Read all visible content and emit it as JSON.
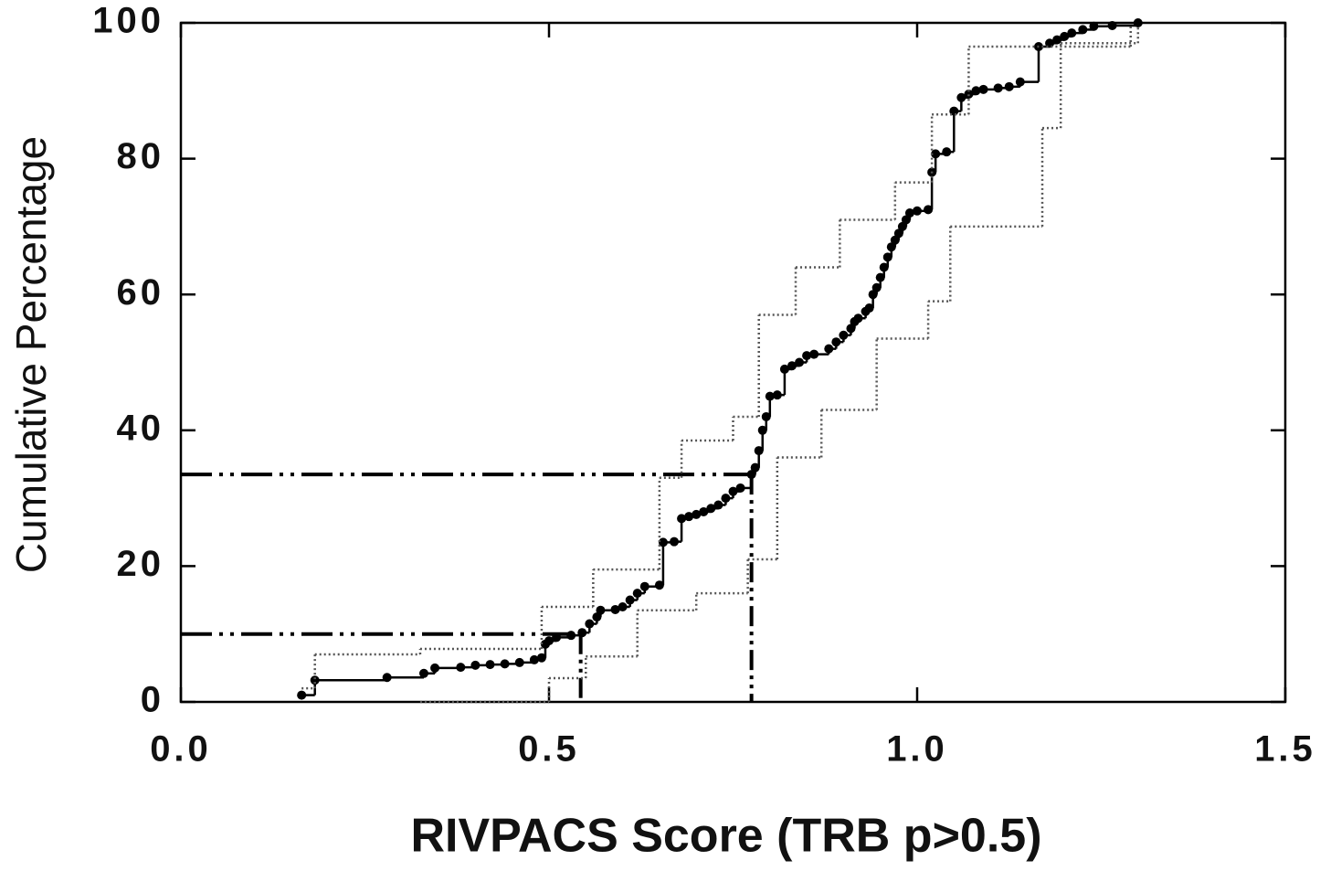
{
  "chart_data": {
    "type": "step",
    "xlabel": "RIVPACS Score (TRB p>0.5)",
    "ylabel": "Cumulative Percentage",
    "xlim": [
      0,
      1.5
    ],
    "ylim": [
      0,
      100
    ],
    "xticks": [
      {
        "value": 0,
        "label": "0.0"
      },
      0.5,
      {
        "value": 1,
        "label": "1.0"
      },
      1.5
    ],
    "yticks": [
      0,
      20,
      40,
      60,
      80,
      100
    ],
    "series": [
      {
        "color": "#000000",
        "style": "solid",
        "markers": true,
        "x": [
          0.164,
          0.182,
          0.28,
          0.33,
          0.345,
          0.38,
          0.4,
          0.42,
          0.44,
          0.46,
          0.48,
          0.49,
          0.495,
          0.5,
          0.51,
          0.53,
          0.545,
          0.555,
          0.565,
          0.57,
          0.59,
          0.6,
          0.61,
          0.62,
          0.63,
          0.65,
          0.655,
          0.67,
          0.68,
          0.69,
          0.7,
          0.71,
          0.72,
          0.73,
          0.74,
          0.75,
          0.76,
          0.775,
          0.78,
          0.785,
          0.79,
          0.795,
          0.8,
          0.81,
          0.82,
          0.83,
          0.84,
          0.85,
          0.86,
          0.88,
          0.89,
          0.9,
          0.91,
          0.915,
          0.92,
          0.93,
          0.935,
          0.94,
          0.945,
          0.95,
          0.955,
          0.96,
          0.965,
          0.97,
          0.975,
          0.98,
          0.985,
          0.99,
          1.0,
          1.015,
          1.02,
          1.025,
          1.04,
          1.05,
          1.06,
          1.07,
          1.08,
          1.09,
          1.11,
          1.125,
          1.14,
          1.165,
          1.18,
          1.19,
          1.2,
          1.21,
          1.225,
          1.24,
          1.265,
          1.3
        ],
        "values": [
          1,
          3.2,
          3.6,
          4.2,
          5,
          5.1,
          5.4,
          5.5,
          5.6,
          5.8,
          6.2,
          6.5,
          8.5,
          9,
          9.5,
          9.8,
          10.2,
          11.5,
          12.5,
          13.5,
          13.6,
          14,
          15,
          16,
          17,
          17.2,
          23.5,
          23.6,
          27,
          27.3,
          27.6,
          28,
          28.5,
          29,
          30,
          31,
          31.5,
          33.5,
          34.5,
          37,
          40,
          42,
          45,
          45.2,
          49,
          49.5,
          50,
          51,
          51.2,
          52,
          53,
          54,
          55,
          56,
          56.5,
          57.5,
          58,
          60,
          61,
          62.5,
          64,
          65.5,
          67,
          68,
          69,
          70,
          71,
          72,
          72.3,
          72.5,
          78,
          80.7,
          81,
          87,
          89,
          89.5,
          90,
          90.2,
          90.4,
          90.6,
          91.3,
          96.5,
          97,
          97.5,
          98,
          98.5,
          99,
          99.5,
          99.6,
          100
        ]
      },
      {
        "color": "#555555",
        "style": "dotted",
        "markers": false,
        "x": [
          0.164,
          0.182,
          0.325,
          0.49,
          0.56,
          0.65,
          0.68,
          0.75,
          0.785,
          0.835,
          0.895,
          0.97,
          1.02,
          1.07,
          1.29
        ],
        "values": [
          2,
          7,
          7.8,
          14,
          19.5,
          33,
          38.5,
          42,
          57,
          64,
          71,
          76.5,
          86.5,
          96.5,
          99.7
        ]
      },
      {
        "color": "#555555",
        "style": "dotted",
        "markers": false,
        "x": [
          0.325,
          0.5,
          0.55,
          0.62,
          0.7,
          0.77,
          0.81,
          0.87,
          0.945,
          1.015,
          1.045,
          1.17,
          1.195,
          1.3
        ],
        "values": [
          0,
          3.5,
          6.7,
          13.5,
          16,
          21,
          36,
          43,
          53.5,
          59,
          70,
          84.5,
          97,
          99.3
        ]
      }
    ],
    "reference_lines": [
      {
        "x": 0.775,
        "y": 33.5
      },
      {
        "x": 0.543,
        "y": 10
      }
    ]
  }
}
